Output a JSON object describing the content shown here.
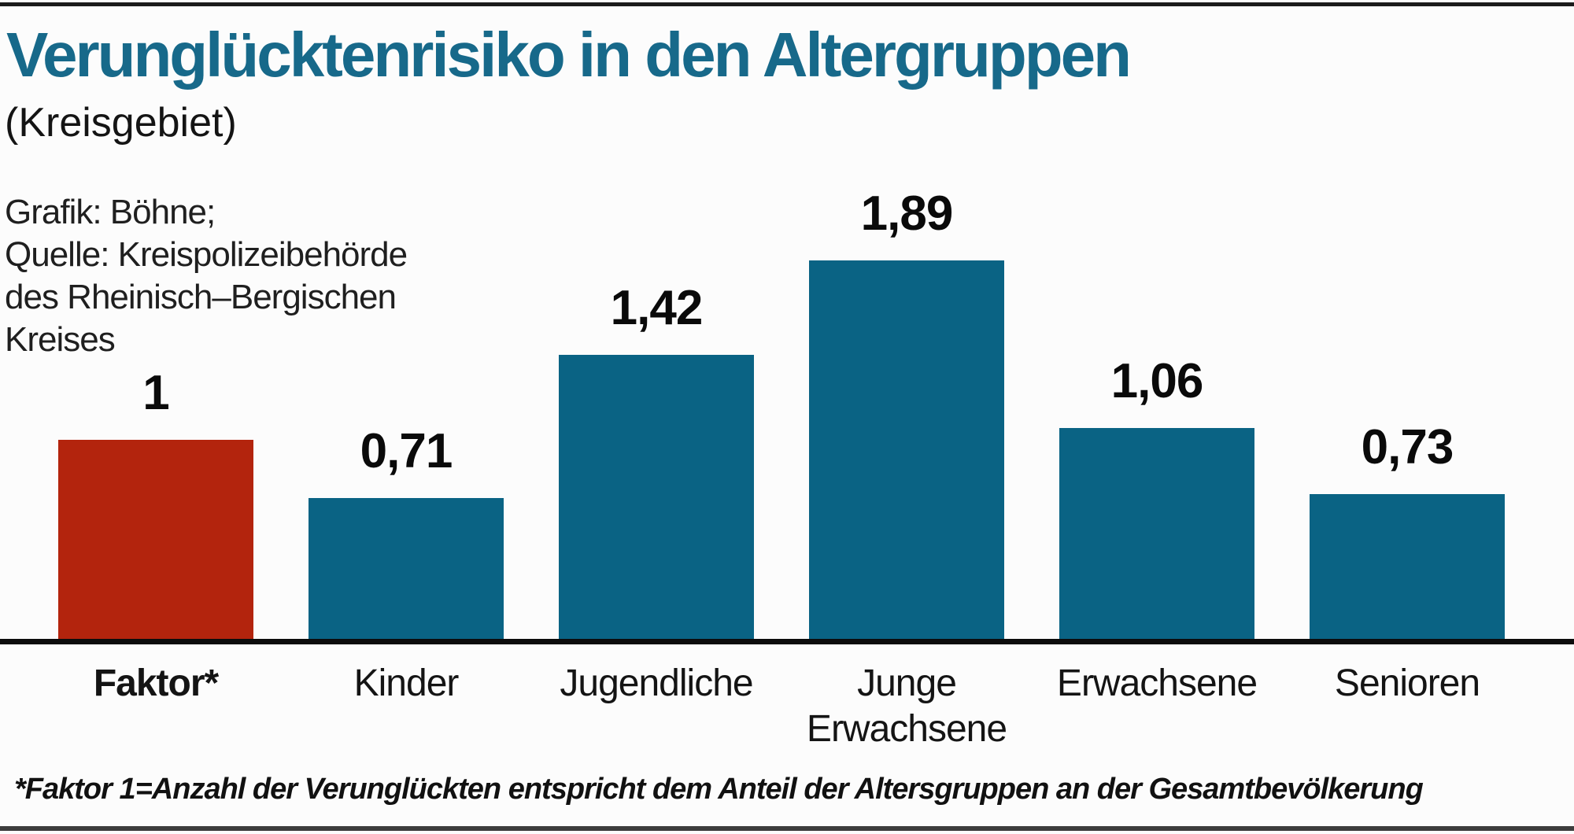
{
  "page": {
    "title": "Verunglücktenrisiko in den Altergruppen",
    "subtitle": "(Kreisgebiet)",
    "credits": [
      "Grafik: Böhne;",
      "Quelle: Kreispolizeibehörde",
      "des Rheinisch–Bergischen",
      "Kreises"
    ],
    "footnote": "*Faktor 1=Anzahl der Verunglückten entspricht dem Anteil der Altersgruppen an der Gesamtbevölkerung"
  },
  "colors": {
    "title_teal": "#17698a",
    "bar_teal": "#0a6384",
    "bar_red": "#b3240d",
    "axis_black": "#0c0c0c"
  },
  "chart_data": {
    "type": "bar",
    "title": "Verunglücktenrisiko in den Altergruppen (Kreisgebiet)",
    "categories": [
      "Faktor*",
      "Kinder",
      "Jugendliche",
      "Junge Erwachsene",
      "Erwachsene",
      "Senioren"
    ],
    "values": [
      1,
      0.71,
      1.42,
      1.89,
      1.06,
      0.73
    ],
    "value_labels": [
      "1",
      "0,71",
      "1,42",
      "1,89",
      "1,06",
      "0,73"
    ],
    "highlight_index": 0,
    "highlight_meaning": "Faktor* reference bar shown in red, all age groups in teal",
    "xlabel": "",
    "ylabel": "",
    "ylim": [
      0,
      2
    ],
    "grid": false,
    "legend": null,
    "value_labels_position": "above bars",
    "baseline_axis": "x-axis drawn as thick black line, no y-axis shown"
  }
}
